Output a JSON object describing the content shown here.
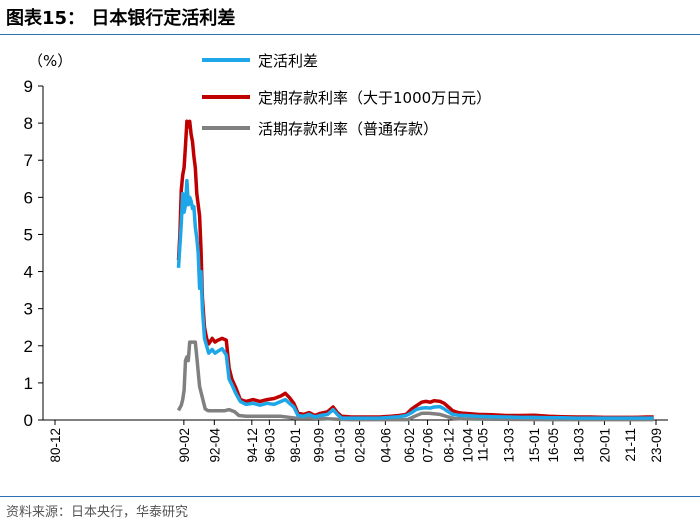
{
  "header": {
    "title": "图表15：   日本银行定活利差"
  },
  "footer": {
    "source": "资料来源：日本央行，华泰研究"
  },
  "chart_data": {
    "type": "line",
    "title": "日本银行定活利差",
    "ylabel": "（%）",
    "ylim": [
      0,
      9
    ],
    "yticks": [
      0,
      1,
      2,
      3,
      4,
      5,
      6,
      7,
      8,
      9
    ],
    "x_range": [
      1980.917,
      2023.667
    ],
    "x_ticks": [
      {
        "label": "80-12",
        "x": 1980.917
      },
      {
        "label": "90-02",
        "x": 1990.083
      },
      {
        "label": "92-04",
        "x": 1992.25
      },
      {
        "label": "94-12",
        "x": 1994.917
      },
      {
        "label": "96-03",
        "x": 1996.167
      },
      {
        "label": "98-01",
        "x": 1998.0
      },
      {
        "label": "99-09",
        "x": 1999.667
      },
      {
        "label": "01-03",
        "x": 2001.167
      },
      {
        "label": "02-08",
        "x": 2002.583
      },
      {
        "label": "04-06",
        "x": 2004.417
      },
      {
        "label": "06-02",
        "x": 2006.083
      },
      {
        "label": "07-06",
        "x": 2007.417
      },
      {
        "label": "08-12",
        "x": 2008.917
      },
      {
        "label": "10-04",
        "x": 2010.25
      },
      {
        "label": "11-05",
        "x": 2011.333
      },
      {
        "label": "13-03",
        "x": 2013.167
      },
      {
        "label": "15-01",
        "x": 2015.0
      },
      {
        "label": "16-05",
        "x": 2016.333
      },
      {
        "label": "18-03",
        "x": 2018.167
      },
      {
        "label": "20-01",
        "x": 2020.0
      },
      {
        "label": "21-11",
        "x": 2021.833
      },
      {
        "label": "23-09",
        "x": 2023.667
      }
    ],
    "series": [
      {
        "name": "定活利差",
        "color": "#1ea7e8",
        "points": [
          [
            1989.7,
            4.1
          ],
          [
            1989.8,
            4.7
          ],
          [
            1989.9,
            5.3
          ],
          [
            1990.0,
            6.1
          ],
          [
            1990.1,
            5.6
          ],
          [
            1990.2,
            5.8
          ],
          [
            1990.3,
            6.45
          ],
          [
            1990.4,
            5.8
          ],
          [
            1990.5,
            6.0
          ],
          [
            1990.6,
            5.9
          ],
          [
            1990.7,
            5.7
          ],
          [
            1990.8,
            5.75
          ],
          [
            1990.9,
            5.2
          ],
          [
            1991.0,
            4.9
          ],
          [
            1991.1,
            4.5
          ],
          [
            1991.2,
            3.55
          ],
          [
            1991.3,
            4.0
          ],
          [
            1991.4,
            3.0
          ],
          [
            1991.55,
            2.2
          ],
          [
            1991.7,
            2.0
          ],
          [
            1991.85,
            1.8
          ],
          [
            1992.1,
            1.9
          ],
          [
            1992.3,
            1.8
          ],
          [
            1992.5,
            1.85
          ],
          [
            1992.8,
            1.92
          ],
          [
            1993.1,
            1.75
          ],
          [
            1993.3,
            1.1
          ],
          [
            1993.5,
            0.95
          ],
          [
            1993.8,
            0.7
          ],
          [
            1994.1,
            0.5
          ],
          [
            1994.5,
            0.42
          ],
          [
            1995.0,
            0.45
          ],
          [
            1995.5,
            0.4
          ],
          [
            1996.0,
            0.45
          ],
          [
            1996.5,
            0.42
          ],
          [
            1997.0,
            0.5
          ],
          [
            1997.3,
            0.55
          ],
          [
            1997.6,
            0.45
          ],
          [
            1997.9,
            0.35
          ],
          [
            1998.2,
            0.12
          ],
          [
            1998.6,
            0.1
          ],
          [
            1999.0,
            0.15
          ],
          [
            1999.4,
            0.08
          ],
          [
            1999.8,
            0.12
          ],
          [
            2000.3,
            0.15
          ],
          [
            2000.7,
            0.28
          ],
          [
            2001.0,
            0.15
          ],
          [
            2001.3,
            0.05
          ],
          [
            2002.0,
            0.05
          ],
          [
            2003.0,
            0.05
          ],
          [
            2004.0,
            0.05
          ],
          [
            2004.8,
            0.07
          ],
          [
            2005.4,
            0.09
          ],
          [
            2005.9,
            0.12
          ],
          [
            2006.3,
            0.2
          ],
          [
            2006.6,
            0.28
          ],
          [
            2007.0,
            0.32
          ],
          [
            2007.3,
            0.33
          ],
          [
            2007.6,
            0.32
          ],
          [
            2007.9,
            0.35
          ],
          [
            2008.3,
            0.36
          ],
          [
            2008.6,
            0.3
          ],
          [
            2008.9,
            0.22
          ],
          [
            2009.2,
            0.15
          ],
          [
            2009.6,
            0.13
          ],
          [
            2010.0,
            0.12
          ],
          [
            2011.0,
            0.1
          ],
          [
            2012.0,
            0.09
          ],
          [
            2013.0,
            0.08
          ],
          [
            2014.0,
            0.07
          ],
          [
            2015.0,
            0.07
          ],
          [
            2016.0,
            0.06
          ],
          [
            2017.0,
            0.06
          ],
          [
            2018.0,
            0.05
          ],
          [
            2019.0,
            0.05
          ],
          [
            2020.0,
            0.05
          ],
          [
            2021.0,
            0.05
          ],
          [
            2022.0,
            0.05
          ],
          [
            2023.0,
            0.05
          ],
          [
            2023.5,
            0.05
          ]
        ]
      },
      {
        "name": "定期存款利率（大于1000万日元）",
        "color": "#c00000",
        "points": [
          [
            1989.7,
            4.3
          ],
          [
            1989.8,
            5.0
          ],
          [
            1989.9,
            6.2
          ],
          [
            1990.0,
            6.6
          ],
          [
            1990.1,
            6.8
          ],
          [
            1990.2,
            7.4
          ],
          [
            1990.3,
            8.05
          ],
          [
            1990.4,
            7.9
          ],
          [
            1990.5,
            8.05
          ],
          [
            1990.6,
            7.7
          ],
          [
            1990.7,
            7.5
          ],
          [
            1990.8,
            7.1
          ],
          [
            1990.9,
            6.8
          ],
          [
            1991.0,
            6.1
          ],
          [
            1991.1,
            5.8
          ],
          [
            1991.2,
            5.5
          ],
          [
            1991.3,
            4.6
          ],
          [
            1991.4,
            3.3
          ],
          [
            1991.55,
            2.5
          ],
          [
            1991.7,
            2.2
          ],
          [
            1991.85,
            2.05
          ],
          [
            1992.1,
            2.2
          ],
          [
            1992.3,
            2.1
          ],
          [
            1992.5,
            2.15
          ],
          [
            1992.8,
            2.2
          ],
          [
            1993.1,
            2.15
          ],
          [
            1993.3,
            1.4
          ],
          [
            1993.5,
            1.1
          ],
          [
            1993.8,
            0.85
          ],
          [
            1994.1,
            0.55
          ],
          [
            1994.5,
            0.5
          ],
          [
            1995.0,
            0.55
          ],
          [
            1995.5,
            0.5
          ],
          [
            1996.0,
            0.55
          ],
          [
            1996.5,
            0.58
          ],
          [
            1997.0,
            0.65
          ],
          [
            1997.3,
            0.72
          ],
          [
            1997.6,
            0.6
          ],
          [
            1997.9,
            0.45
          ],
          [
            1998.2,
            0.18
          ],
          [
            1998.6,
            0.15
          ],
          [
            1999.0,
            0.2
          ],
          [
            1999.4,
            0.12
          ],
          [
            1999.8,
            0.18
          ],
          [
            2000.3,
            0.22
          ],
          [
            2000.7,
            0.35
          ],
          [
            2001.0,
            0.2
          ],
          [
            2001.3,
            0.1
          ],
          [
            2002.0,
            0.08
          ],
          [
            2003.0,
            0.08
          ],
          [
            2004.0,
            0.08
          ],
          [
            2004.8,
            0.1
          ],
          [
            2005.4,
            0.12
          ],
          [
            2005.9,
            0.15
          ],
          [
            2006.3,
            0.3
          ],
          [
            2006.6,
            0.38
          ],
          [
            2007.0,
            0.48
          ],
          [
            2007.3,
            0.5
          ],
          [
            2007.6,
            0.48
          ],
          [
            2007.9,
            0.52
          ],
          [
            2008.3,
            0.5
          ],
          [
            2008.6,
            0.45
          ],
          [
            2008.9,
            0.35
          ],
          [
            2009.2,
            0.25
          ],
          [
            2009.6,
            0.2
          ],
          [
            2010.0,
            0.18
          ],
          [
            2011.0,
            0.15
          ],
          [
            2012.0,
            0.14
          ],
          [
            2013.0,
            0.12
          ],
          [
            2014.0,
            0.12
          ],
          [
            2015.0,
            0.13
          ],
          [
            2016.0,
            0.1
          ],
          [
            2017.0,
            0.09
          ],
          [
            2018.0,
            0.08
          ],
          [
            2019.0,
            0.08
          ],
          [
            2020.0,
            0.07
          ],
          [
            2021.0,
            0.07
          ],
          [
            2022.0,
            0.07
          ],
          [
            2023.0,
            0.08
          ],
          [
            2023.5,
            0.08
          ]
        ]
      },
      {
        "name": "活期存款利率（普通存款）",
        "color": "#808080",
        "points": [
          [
            1989.7,
            0.26
          ],
          [
            1989.9,
            0.4
          ],
          [
            1990.0,
            0.55
          ],
          [
            1990.1,
            0.8
          ],
          [
            1990.2,
            1.6
          ],
          [
            1990.3,
            1.7
          ],
          [
            1990.4,
            1.6
          ],
          [
            1990.5,
            2.1
          ],
          [
            1990.6,
            2.1
          ],
          [
            1990.8,
            2.1
          ],
          [
            1990.9,
            2.1
          ],
          [
            1991.0,
            1.7
          ],
          [
            1991.1,
            1.3
          ],
          [
            1991.2,
            0.9
          ],
          [
            1991.4,
            0.6
          ],
          [
            1991.6,
            0.3
          ],
          [
            1991.8,
            0.25
          ],
          [
            1992.5,
            0.25
          ],
          [
            1993.0,
            0.25
          ],
          [
            1993.3,
            0.28
          ],
          [
            1993.7,
            0.22
          ],
          [
            1994.0,
            0.12
          ],
          [
            1994.5,
            0.1
          ],
          [
            1995.0,
            0.1
          ],
          [
            1996.0,
            0.1
          ],
          [
            1997.0,
            0.1
          ],
          [
            1998.0,
            0.05
          ],
          [
            1999.0,
            0.05
          ],
          [
            2000.0,
            0.04
          ],
          [
            2001.0,
            0.02
          ],
          [
            2002.0,
            0.01
          ],
          [
            2006.0,
            0.01
          ],
          [
            2006.5,
            0.1
          ],
          [
            2007.0,
            0.18
          ],
          [
            2007.5,
            0.18
          ],
          [
            2008.3,
            0.15
          ],
          [
            2008.9,
            0.08
          ],
          [
            2009.3,
            0.04
          ],
          [
            2010.0,
            0.03
          ],
          [
            2012.0,
            0.02
          ],
          [
            2016.0,
            0.01
          ],
          [
            2023.5,
            0.01
          ]
        ]
      }
    ]
  }
}
